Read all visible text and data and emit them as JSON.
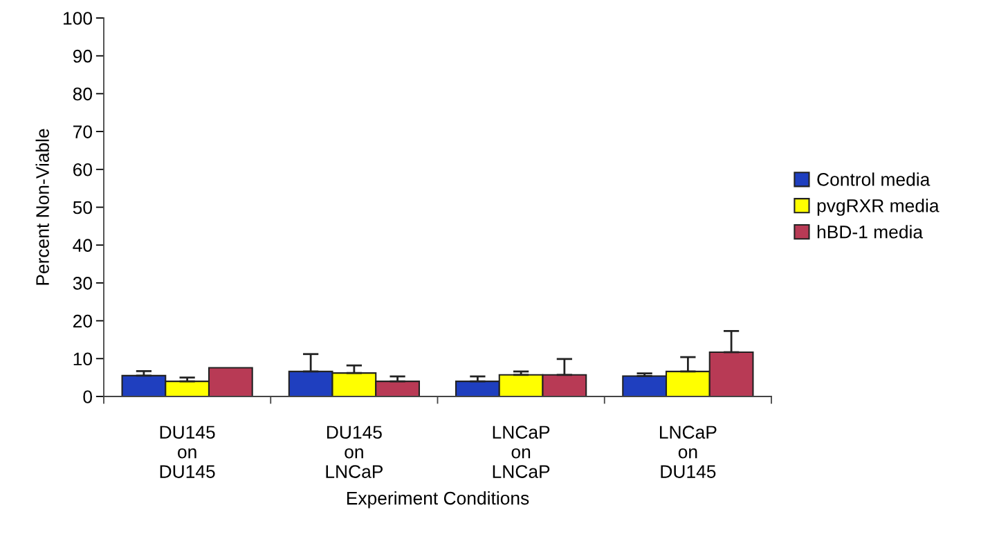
{
  "chart_data": {
    "type": "bar",
    "xlabel": "Experiment Conditions",
    "ylabel": "Percent Non-Viable",
    "categories": [
      "DU145\non\nDU145",
      "DU145\non\nLNCaP",
      "LNCaP\non\nLNCaP",
      "LNCaP\non\nDU145"
    ],
    "series": [
      {
        "name": "Control media",
        "color": "#1f3fbf",
        "values": [
          5.5,
          6.6,
          4.0,
          5.4
        ],
        "errors": [
          [
            5.5,
            6.7
          ],
          [
            6.6,
            11.2
          ],
          [
            4.0,
            5.3
          ],
          [
            5.4,
            6.1
          ]
        ]
      },
      {
        "name": "pvgRXR media",
        "color": "#ffff00",
        "values": [
          4.0,
          6.2,
          5.7,
          6.6
        ],
        "errors": [
          [
            4.0,
            5.0
          ],
          [
            6.2,
            8.2
          ],
          [
            5.7,
            6.6
          ],
          [
            6.6,
            10.4
          ]
        ]
      },
      {
        "name": "hBD-1 media",
        "color": "#b83a55",
        "values": [
          7.6,
          4.0,
          5.7,
          11.7
        ],
        "errors": [
          null,
          [
            4.0,
            5.3
          ],
          [
            5.7,
            9.9
          ],
          [
            11.7,
            17.3
          ]
        ]
      }
    ],
    "ylim": [
      0,
      100
    ],
    "yticks": [
      0,
      10,
      20,
      30,
      40,
      50,
      60,
      70,
      80,
      90,
      100
    ],
    "grid": false,
    "legend": "right"
  }
}
